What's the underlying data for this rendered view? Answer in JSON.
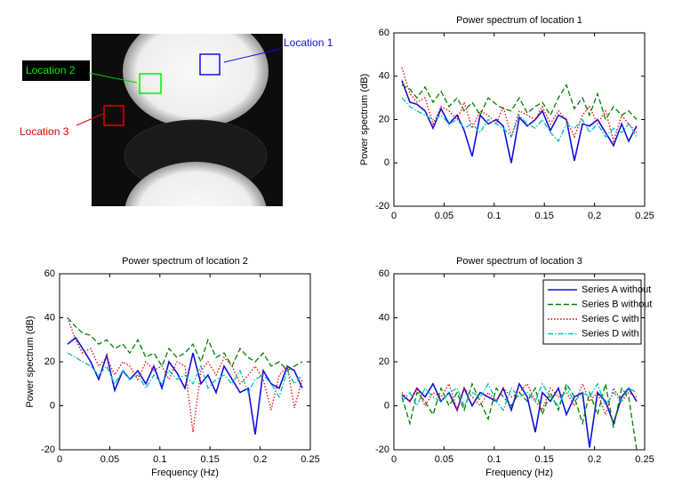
{
  "image": {
    "labels": [
      "Location 1",
      "Location 2",
      "Location 3"
    ]
  },
  "chart_data": [
    {
      "type": "line",
      "title": "Power spectrum of location 1",
      "y_label": "Power spectrum (dB)",
      "x": [
        0.008,
        0.016,
        0.023,
        0.031,
        0.039,
        0.047,
        0.055,
        0.063,
        0.07,
        0.078,
        0.086,
        0.094,
        0.102,
        0.109,
        0.117,
        0.125,
        0.133,
        0.141,
        0.148,
        0.156,
        0.164,
        0.172,
        0.18,
        0.188,
        0.195,
        0.203,
        0.211,
        0.219,
        0.227,
        0.234,
        0.242
      ],
      "xlim": [
        0,
        0.25
      ],
      "xticks": [
        0,
        0.05,
        0.1,
        0.15,
        0.2,
        0.25
      ],
      "ylim": [
        -20,
        60
      ],
      "yticks": [
        -20,
        0,
        20,
        40,
        60
      ],
      "series": [
        {
          "color": "#1010e0",
          "values": [
            38,
            28,
            27,
            24,
            16,
            25,
            18,
            22,
            15,
            3,
            22,
            18,
            20,
            17,
            0,
            21,
            17,
            20,
            24,
            15,
            22,
            20,
            1,
            18,
            17,
            20,
            14,
            8,
            18,
            10,
            17
          ]
        },
        {
          "color": "#008000",
          "values": [
            36,
            34,
            30,
            35,
            28,
            33,
            26,
            30,
            24,
            28,
            22,
            30,
            27,
            25,
            24,
            30,
            23,
            26,
            28,
            22,
            30,
            36,
            25,
            30,
            22,
            32,
            20,
            26,
            22,
            24,
            20
          ]
        },
        {
          "color": "#ff0000",
          "values": [
            44,
            32,
            28,
            30,
            18,
            26,
            24,
            20,
            28,
            16,
            24,
            22,
            18,
            26,
            12,
            24,
            22,
            20,
            26,
            18,
            24,
            20,
            12,
            22,
            26,
            18,
            24,
            10,
            22,
            18,
            14
          ]
        },
        {
          "color": "#00bfbf",
          "values": [
            30,
            26,
            24,
            22,
            20,
            22,
            18,
            20,
            16,
            18,
            14,
            20,
            18,
            16,
            12,
            22,
            18,
            16,
            20,
            14,
            10,
            18,
            16,
            20,
            14,
            18,
            12,
            16,
            14,
            18,
            12
          ]
        }
      ]
    },
    {
      "type": "line",
      "title": "Power spectrum of location 2",
      "y_label": "Power spectrum (dB)",
      "x_label": "Frequency (Hz)",
      "x": [
        0.008,
        0.016,
        0.023,
        0.031,
        0.039,
        0.047,
        0.055,
        0.063,
        0.07,
        0.078,
        0.086,
        0.094,
        0.102,
        0.109,
        0.117,
        0.125,
        0.133,
        0.141,
        0.148,
        0.156,
        0.164,
        0.172,
        0.18,
        0.188,
        0.195,
        0.203,
        0.211,
        0.219,
        0.227,
        0.234,
        0.242
      ],
      "xlim": [
        0,
        0.25
      ],
      "xticks": [
        0,
        0.05,
        0.1,
        0.15,
        0.2,
        0.25
      ],
      "ylim": [
        -20,
        60
      ],
      "yticks": [
        -20,
        0,
        20,
        40,
        60
      ],
      "series": [
        {
          "color": "#1010e0",
          "values": [
            28,
            31,
            26,
            20,
            12,
            23,
            7,
            16,
            12,
            16,
            10,
            18,
            8,
            20,
            15,
            8,
            24,
            10,
            14,
            6,
            18,
            12,
            6,
            8,
            -13,
            16,
            10,
            8,
            18,
            16,
            8
          ]
        },
        {
          "color": "#008000",
          "values": [
            40,
            36,
            33,
            32,
            28,
            30,
            26,
            28,
            24,
            30,
            22,
            24,
            18,
            26,
            22,
            24,
            28,
            20,
            30,
            22,
            24,
            18,
            26,
            22,
            20,
            24,
            18,
            20,
            16,
            18,
            20
          ]
        },
        {
          "color": "#ff0000",
          "values": [
            40,
            30,
            24,
            26,
            18,
            22,
            14,
            20,
            18,
            12,
            20,
            16,
            18,
            12,
            20,
            18,
            -12,
            16,
            20,
            14,
            22,
            18,
            10,
            14,
            18,
            12,
            -2,
            14,
            18,
            -1,
            12
          ]
        },
        {
          "color": "#00bfbf",
          "values": [
            24,
            22,
            20,
            18,
            14,
            18,
            10,
            16,
            12,
            14,
            8,
            14,
            10,
            16,
            12,
            14,
            10,
            18,
            8,
            12,
            14,
            10,
            16,
            6,
            12,
            14,
            10,
            4,
            16,
            10,
            14
          ]
        }
      ]
    },
    {
      "type": "line",
      "title": "Power spectrum of location 3",
      "x_label": "Frequency (Hz)",
      "legend": "upper right",
      "x": [
        0.008,
        0.016,
        0.023,
        0.031,
        0.039,
        0.047,
        0.055,
        0.063,
        0.07,
        0.078,
        0.086,
        0.094,
        0.102,
        0.109,
        0.117,
        0.125,
        0.133,
        0.141,
        0.148,
        0.156,
        0.164,
        0.172,
        0.18,
        0.188,
        0.195,
        0.203,
        0.211,
        0.219,
        0.227,
        0.234,
        0.242
      ],
      "xlim": [
        0,
        0.25
      ],
      "xticks": [
        0,
        0.05,
        0.1,
        0.15,
        0.2,
        0.25
      ],
      "ylim": [
        -20,
        60
      ],
      "yticks": [
        -20,
        0,
        20,
        40,
        60
      ],
      "series": [
        {
          "name": "Series A without",
          "color": "#1010e0",
          "values": [
            5,
            2,
            8,
            4,
            10,
            2,
            6,
            -2,
            8,
            0,
            6,
            4,
            2,
            8,
            -2,
            10,
            4,
            -12,
            6,
            2,
            8,
            -4,
            4,
            6,
            -19,
            6,
            2,
            -8,
            4,
            8,
            2
          ]
        },
        {
          "name": "Series B without",
          "color": "#008000",
          "values": [
            4,
            -8,
            6,
            2,
            -4,
            8,
            0,
            6,
            -2,
            10,
            2,
            -6,
            8,
            4,
            0,
            6,
            2,
            8,
            -4,
            6,
            -2,
            10,
            4,
            -8,
            6,
            -4,
            10,
            -10,
            8,
            4,
            -20
          ]
        },
        {
          "name": "Series C with",
          "color": "#ff0000",
          "values": [
            6,
            2,
            8,
            0,
            6,
            4,
            10,
            -2,
            8,
            4,
            0,
            6,
            2,
            8,
            4,
            6,
            10,
            2,
            -2,
            8,
            4,
            6,
            0,
            10,
            2,
            6,
            -4,
            8,
            2,
            6,
            4
          ]
        },
        {
          "name": "Series D with",
          "color": "#00bfbf",
          "values": [
            2,
            6,
            0,
            8,
            4,
            2,
            6,
            8,
            0,
            6,
            4,
            10,
            2,
            -2,
            8,
            4,
            6,
            2,
            10,
            4,
            0,
            8,
            2,
            6,
            4,
            10,
            0,
            6,
            2,
            8,
            6
          ]
        }
      ]
    }
  ]
}
